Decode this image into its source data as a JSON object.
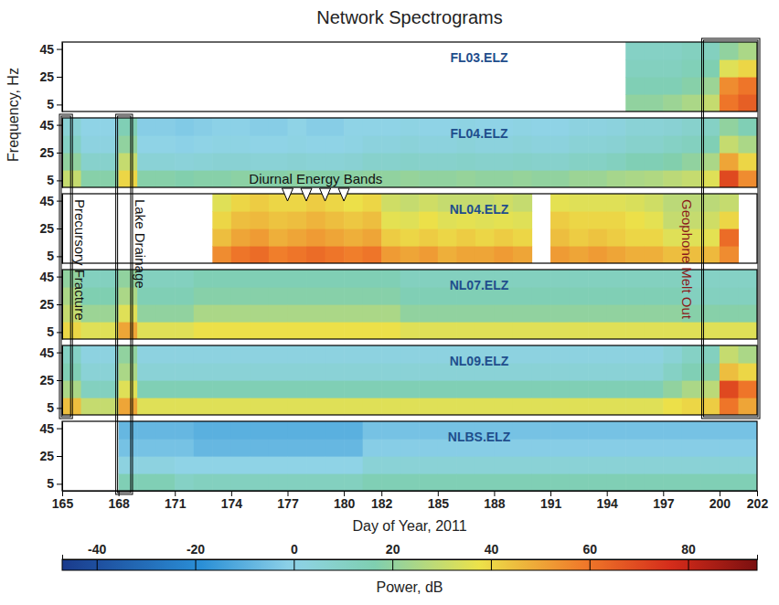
{
  "chart_data": {
    "type": "heatmap",
    "title": "Network Spectrograms",
    "x_label": "Day of Year, 2011",
    "y_label": "Frequency, Hz",
    "colorbar_label": "Power, dB",
    "xlim": [
      165,
      202
    ],
    "xticks": [
      165,
      168,
      171,
      174,
      177,
      180,
      182,
      185,
      188,
      191,
      194,
      197,
      200,
      202
    ],
    "ylim": [
      0,
      50
    ],
    "yticks": [
      5,
      25,
      45
    ],
    "clim": [
      -47,
      94
    ],
    "cticks": [
      -40,
      -20,
      0,
      20,
      40,
      60,
      80
    ],
    "x_bins": [
      165,
      166,
      167,
      168,
      169,
      170,
      171,
      172,
      173,
      174,
      175,
      176,
      177,
      178,
      179,
      180,
      181,
      182,
      183,
      184,
      185,
      186,
      187,
      188,
      189,
      190,
      191,
      192,
      193,
      194,
      195,
      196,
      197,
      198,
      199,
      200,
      201,
      202
    ],
    "y_bins": [
      0,
      12.5,
      25,
      37.5,
      50
    ],
    "panels": [
      {
        "name": "FL03.ELZ",
        "values": [
          null,
          null,
          null,
          null,
          null,
          null,
          null,
          null,
          null,
          null,
          null,
          null,
          null,
          null,
          null,
          null,
          null,
          null,
          null,
          null,
          null,
          null,
          null,
          null,
          null,
          null,
          null,
          null,
          null,
          null,
          [
            20,
            15,
            12,
            10
          ],
          [
            20,
            15,
            12,
            10
          ],
          [
            22,
            15,
            12,
            10
          ],
          [
            25,
            18,
            14,
            12
          ],
          [
            30,
            22,
            16,
            12
          ],
          [
            60,
            55,
            35,
            20
          ],
          [
            65,
            60,
            40,
            25
          ]
        ]
      },
      {
        "name": "FL04.ELZ",
        "values": [
          [
            30,
            20,
            10,
            5
          ],
          [
            18,
            8,
            2,
            0
          ],
          [
            18,
            8,
            2,
            0
          ],
          [
            40,
            30,
            20,
            15
          ],
          [
            18,
            5,
            0,
            -2
          ],
          [
            18,
            5,
            0,
            -2
          ],
          [
            17,
            4,
            -1,
            -3
          ],
          [
            18,
            5,
            0,
            -2
          ],
          [
            18,
            6,
            1,
            -1
          ],
          [
            19,
            6,
            1,
            -1
          ],
          [
            18,
            5,
            0,
            -2
          ],
          [
            18,
            5,
            0,
            -2
          ],
          [
            19,
            6,
            1,
            0
          ],
          [
            18,
            5,
            0,
            -2
          ],
          [
            18,
            5,
            0,
            -2
          ],
          [
            19,
            6,
            1,
            0
          ],
          [
            20,
            8,
            3,
            0
          ],
          [
            20,
            8,
            3,
            0
          ],
          [
            21,
            9,
            4,
            1
          ],
          [
            20,
            8,
            3,
            0
          ],
          [
            20,
            8,
            3,
            0
          ],
          [
            21,
            9,
            4,
            1
          ],
          [
            20,
            8,
            3,
            0
          ],
          [
            20,
            8,
            3,
            0
          ],
          [
            21,
            9,
            4,
            1
          ],
          [
            20,
            8,
            3,
            0
          ],
          [
            20,
            8,
            3,
            0
          ],
          [
            22,
            10,
            5,
            2
          ],
          [
            22,
            10,
            5,
            2
          ],
          [
            24,
            12,
            6,
            3
          ],
          [
            25,
            15,
            8,
            5
          ],
          [
            26,
            15,
            8,
            5
          ],
          [
            28,
            17,
            10,
            6
          ],
          [
            30,
            20,
            12,
            8
          ],
          [
            35,
            25,
            15,
            10
          ],
          [
            70,
            50,
            30,
            20
          ],
          [
            55,
            40,
            25,
            15
          ]
        ]
      },
      {
        "name": "NL04.ELZ",
        "values": [
          null,
          null,
          null,
          null,
          null,
          null,
          null,
          null,
          [
            55,
            45,
            40,
            35
          ],
          [
            60,
            50,
            45,
            40
          ],
          [
            62,
            52,
            46,
            42
          ],
          [
            58,
            48,
            44,
            40
          ],
          [
            60,
            50,
            45,
            40
          ],
          [
            62,
            52,
            47,
            42
          ],
          [
            60,
            50,
            45,
            40
          ],
          [
            58,
            48,
            43,
            38
          ],
          [
            60,
            50,
            45,
            40
          ],
          [
            52,
            42,
            36,
            32
          ],
          [
            50,
            40,
            35,
            30
          ],
          [
            52,
            42,
            38,
            32
          ],
          [
            48,
            40,
            35,
            30
          ],
          [
            50,
            42,
            36,
            30
          ],
          [
            50,
            40,
            35,
            30
          ],
          [
            52,
            42,
            36,
            32
          ],
          [
            50,
            40,
            35,
            30
          ],
          null,
          [
            52,
            45,
            42,
            36
          ],
          [
            50,
            42,
            40,
            35
          ],
          [
            52,
            44,
            40,
            35
          ],
          [
            50,
            42,
            40,
            35
          ],
          [
            48,
            40,
            38,
            34
          ],
          [
            48,
            40,
            36,
            32
          ],
          [
            45,
            35,
            30,
            28
          ],
          [
            45,
            35,
            30,
            28
          ],
          [
            46,
            36,
            32,
            28
          ],
          [
            55,
            62,
            40,
            30
          ],
          null
        ]
      },
      {
        "name": "NL07.ELZ",
        "values": [
          [
            40,
            30,
            25,
            20
          ],
          [
            35,
            22,
            16,
            12
          ],
          [
            35,
            22,
            16,
            12
          ],
          [
            50,
            35,
            25,
            20
          ],
          [
            35,
            20,
            15,
            12
          ],
          [
            35,
            20,
            15,
            12
          ],
          [
            35,
            20,
            15,
            12
          ],
          [
            38,
            25,
            18,
            15
          ],
          [
            38,
            25,
            18,
            15
          ],
          [
            38,
            25,
            18,
            15
          ],
          [
            38,
            25,
            18,
            15
          ],
          [
            38,
            25,
            18,
            15
          ],
          [
            38,
            25,
            18,
            15
          ],
          [
            38,
            25,
            18,
            15
          ],
          [
            38,
            25,
            18,
            15
          ],
          [
            38,
            25,
            18,
            15
          ],
          [
            38,
            25,
            18,
            15
          ],
          [
            38,
            25,
            18,
            15
          ],
          [
            35,
            20,
            15,
            12
          ],
          [
            35,
            20,
            15,
            12
          ],
          [
            35,
            20,
            15,
            12
          ],
          [
            35,
            20,
            15,
            12
          ],
          [
            35,
            20,
            15,
            12
          ],
          [
            35,
            20,
            15,
            12
          ],
          [
            35,
            20,
            15,
            12
          ],
          [
            35,
            20,
            15,
            12
          ],
          [
            35,
            20,
            15,
            12
          ],
          [
            35,
            20,
            15,
            12
          ],
          [
            35,
            20,
            15,
            12
          ],
          [
            35,
            20,
            15,
            12
          ],
          [
            35,
            20,
            15,
            12
          ],
          [
            35,
            20,
            15,
            12
          ],
          [
            35,
            20,
            15,
            12
          ],
          [
            35,
            18,
            12,
            10
          ],
          [
            35,
            18,
            12,
            10
          ],
          [
            35,
            18,
            12,
            10
          ],
          [
            35,
            18,
            12,
            10
          ]
        ]
      },
      {
        "name": "NL09.ELZ",
        "values": [
          [
            45,
            25,
            15,
            10
          ],
          [
            30,
            12,
            5,
            2
          ],
          [
            30,
            12,
            5,
            2
          ],
          [
            50,
            35,
            25,
            20
          ],
          [
            35,
            15,
            5,
            2
          ],
          [
            35,
            15,
            5,
            2
          ],
          [
            35,
            15,
            5,
            2
          ],
          [
            35,
            15,
            5,
            2
          ],
          [
            35,
            15,
            5,
            2
          ],
          [
            35,
            15,
            5,
            2
          ],
          [
            35,
            15,
            5,
            2
          ],
          [
            35,
            15,
            5,
            2
          ],
          [
            35,
            15,
            5,
            2
          ],
          [
            35,
            15,
            5,
            2
          ],
          [
            35,
            15,
            5,
            2
          ],
          [
            35,
            15,
            5,
            2
          ],
          [
            35,
            15,
            5,
            2
          ],
          [
            35,
            15,
            5,
            2
          ],
          [
            35,
            15,
            5,
            2
          ],
          [
            35,
            15,
            5,
            2
          ],
          [
            35,
            15,
            5,
            2
          ],
          [
            35,
            15,
            5,
            2
          ],
          [
            35,
            15,
            5,
            2
          ],
          [
            35,
            15,
            5,
            2
          ],
          [
            35,
            15,
            5,
            2
          ],
          [
            35,
            15,
            5,
            2
          ],
          [
            35,
            15,
            5,
            2
          ],
          [
            35,
            15,
            5,
            2
          ],
          [
            35,
            15,
            5,
            2
          ],
          [
            35,
            15,
            5,
            2
          ],
          [
            35,
            15,
            5,
            2
          ],
          [
            35,
            15,
            5,
            2
          ],
          [
            38,
            20,
            10,
            5
          ],
          [
            40,
            25,
            15,
            10
          ],
          [
            42,
            28,
            18,
            12
          ],
          [
            60,
            70,
            45,
            30
          ],
          [
            50,
            60,
            40,
            25
          ]
        ]
      },
      {
        "name": "NLBS.ELZ",
        "values": [
          null,
          null,
          null,
          [
            15,
            2,
            -5,
            -8
          ],
          [
            15,
            2,
            -5,
            -8
          ],
          [
            15,
            2,
            -5,
            -8
          ],
          [
            10,
            0,
            -5,
            -8
          ],
          [
            12,
            0,
            -8,
            -10
          ],
          [
            12,
            0,
            -8,
            -10
          ],
          [
            12,
            0,
            -8,
            -10
          ],
          [
            12,
            0,
            -8,
            -10
          ],
          [
            12,
            0,
            -8,
            -10
          ],
          [
            12,
            0,
            -8,
            -10
          ],
          [
            12,
            0,
            -8,
            -10
          ],
          [
            12,
            0,
            -8,
            -10
          ],
          [
            12,
            0,
            -8,
            -10
          ],
          [
            15,
            5,
            -2,
            -5
          ],
          [
            15,
            5,
            -2,
            -5
          ],
          [
            15,
            5,
            -2,
            -5
          ],
          [
            15,
            5,
            -2,
            -5
          ],
          [
            15,
            5,
            -2,
            -5
          ],
          [
            15,
            5,
            -2,
            -5
          ],
          [
            15,
            5,
            -2,
            -5
          ],
          [
            15,
            5,
            -2,
            -5
          ],
          [
            15,
            5,
            -2,
            -5
          ],
          [
            15,
            5,
            -2,
            -5
          ],
          [
            15,
            5,
            -2,
            -5
          ],
          [
            15,
            5,
            -2,
            -5
          ],
          [
            15,
            5,
            -2,
            -5
          ],
          [
            15,
            5,
            -2,
            -5
          ],
          [
            15,
            5,
            -2,
            -5
          ],
          [
            15,
            5,
            -2,
            -5
          ],
          [
            15,
            5,
            -2,
            -5
          ],
          [
            15,
            5,
            -2,
            -5
          ],
          [
            15,
            5,
            -2,
            -5
          ],
          [
            15,
            5,
            -2,
            -5
          ],
          [
            15,
            5,
            -2,
            -5
          ]
        ]
      }
    ],
    "annotations": [
      {
        "text": "Diurnal Energy Bands",
        "markers": [
          177,
          178,
          179,
          180
        ],
        "rows": [
          2,
          2
        ]
      },
      {
        "text": "Precursory Fracture",
        "x": [
          165,
          165.4
        ],
        "rows": [
          1,
          4
        ]
      },
      {
        "text": "Lake Drainage",
        "x": [
          168,
          168.6
        ],
        "rows": [
          1,
          5
        ]
      },
      {
        "text": "Geophone Melt Out",
        "x": [
          199.2,
          202
        ],
        "rows": [
          0,
          4
        ],
        "color": "#8b1a1a"
      }
    ]
  }
}
